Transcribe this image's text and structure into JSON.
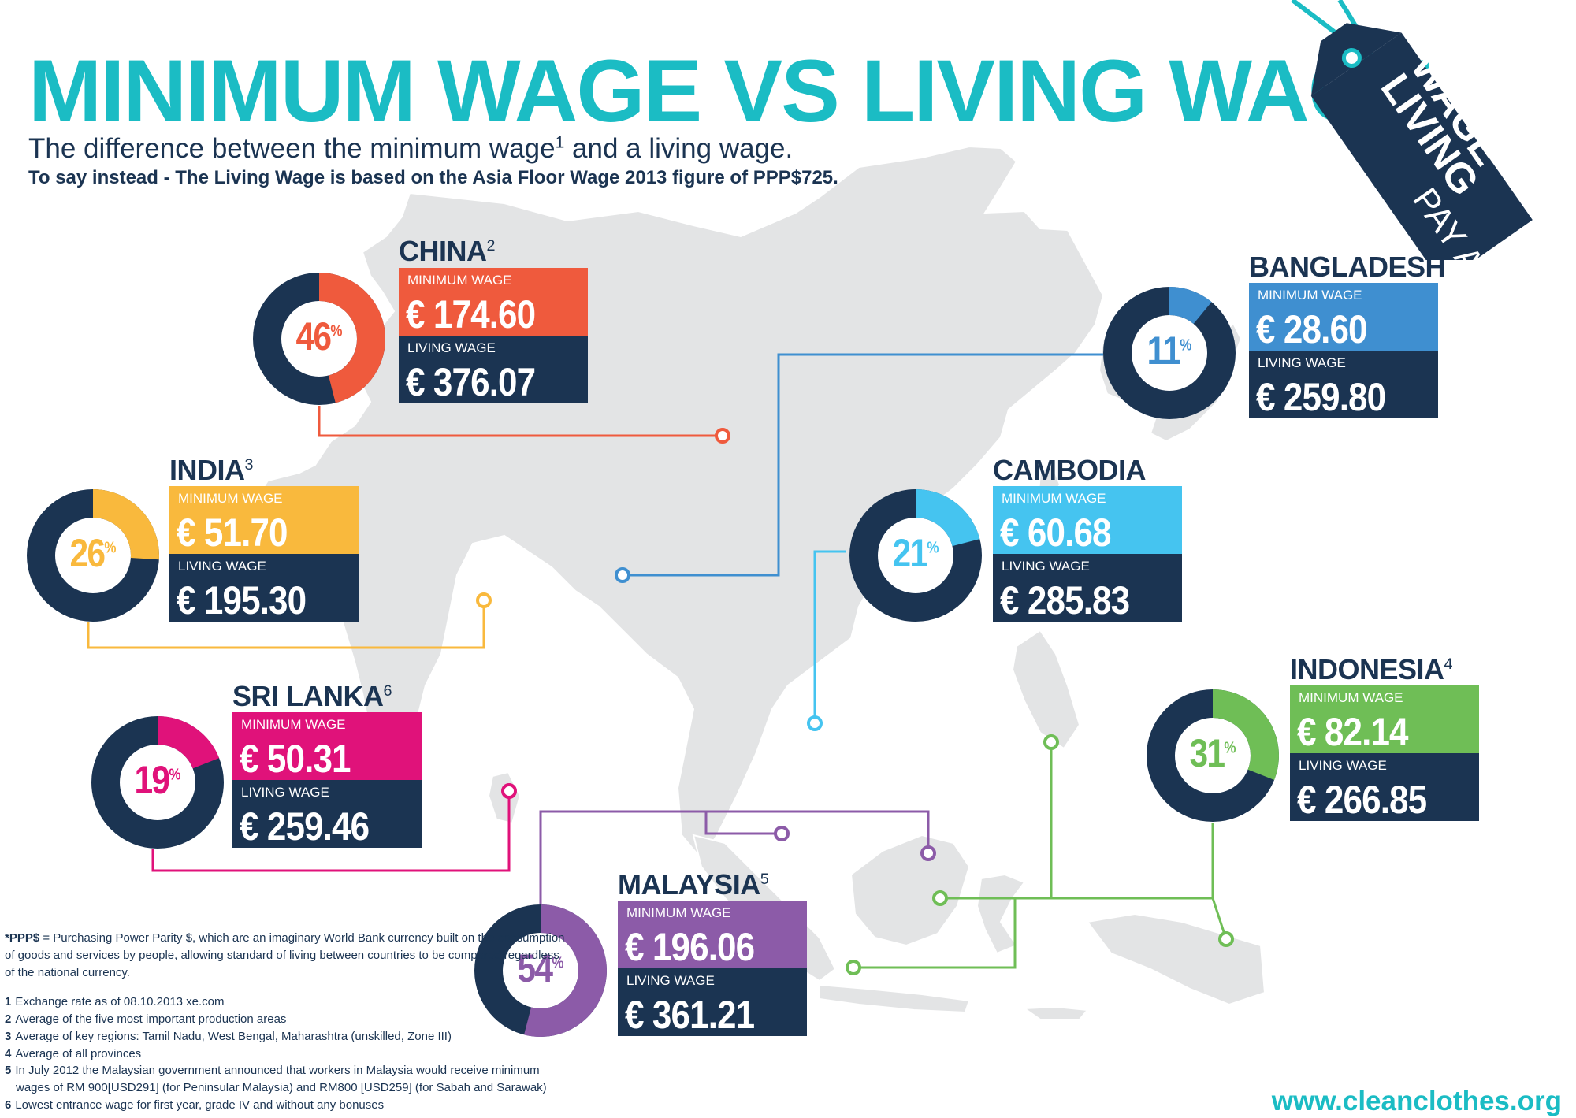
{
  "header": {
    "title": "MINIMUM WAGE VS LIVING WAGE",
    "subtitle_pre": "The difference between the minimum wage",
    "subtitle_sup": "1",
    "subtitle_post": " and a living wage.",
    "subtitle2": "To say instead - The Living Wage is based on the Asia Floor Wage 2013 figure of PPP$725."
  },
  "tag": {
    "line1": "PAY A",
    "line2": "LIVING",
    "line3": "WAGE"
  },
  "labels": {
    "minimum": "MINIMUM WAGE",
    "living": "LIVING WAGE",
    "pct_sign": "%"
  },
  "colors": {
    "navy": "#1b3452",
    "teal": "#1bbcc4",
    "map": "#e3e4e5",
    "china": "#ef5a3d",
    "india": "#f9b93d",
    "srilanka": "#e0127a",
    "malaysia": "#8c5ba8",
    "bangladesh": "#3f8fd0",
    "cambodia": "#45c4f0",
    "indonesia": "#6fbe56"
  },
  "chart_data": {
    "type": "pie",
    "subtype": "donut-set",
    "currency": "€",
    "countries": [
      {
        "key": "china",
        "name": "CHINA",
        "note": "2",
        "pct": 46,
        "minimum_wage": "€ 174.60",
        "living_wage": "€ 376.07",
        "minimum": 174.6,
        "living": 376.07
      },
      {
        "key": "india",
        "name": "INDIA",
        "note": "3",
        "pct": 26,
        "minimum_wage": "€ 51.70",
        "living_wage": "€ 195.30",
        "minimum": 51.7,
        "living": 195.3
      },
      {
        "key": "srilanka",
        "name": "SRI LANKA",
        "note": "6",
        "pct": 19,
        "minimum_wage": "€ 50.31",
        "living_wage": "€ 259.46",
        "minimum": 50.31,
        "living": 259.46
      },
      {
        "key": "malaysia",
        "name": "MALAYSIA",
        "note": "5",
        "pct": 54,
        "minimum_wage": "€ 196.06",
        "living_wage": "€ 361.21",
        "minimum": 196.06,
        "living": 361.21
      },
      {
        "key": "bangladesh",
        "name": "BANGLADESH",
        "note": "",
        "pct": 11,
        "minimum_wage": "€ 28.60",
        "living_wage": "€ 259.80",
        "minimum": 28.6,
        "living": 259.8
      },
      {
        "key": "cambodia",
        "name": "CAMBODIA",
        "note": "",
        "pct": 21,
        "minimum_wage": "€ 60.68",
        "living_wage": "€ 285.83",
        "minimum": 60.68,
        "living": 285.83
      },
      {
        "key": "indonesia",
        "name": "INDONESIA",
        "note": "4",
        "pct": 31,
        "minimum_wage": "€ 82.14",
        "living_wage": "€ 266.85",
        "minimum": 82.14,
        "living": 266.85
      }
    ]
  },
  "footnotes": {
    "ppp_label": "*PPP$",
    "ppp_text": " = Purchasing Power Parity $, which are an imaginary World Bank currency built on the consumption of goods and services by people, allowing standard of living between countries to be compared regardless of the national currency.",
    "items": [
      {
        "num": "1",
        "text": "Exchange rate as of 08.10.2013 xe.com",
        "cont": ""
      },
      {
        "num": "2",
        "text": "Average of the five most important production areas",
        "cont": ""
      },
      {
        "num": "3",
        "text": "Average of key regions: Tamil Nadu, West Bengal, Maharashtra (unskilled, Zone III)",
        "cont": ""
      },
      {
        "num": "4",
        "text": "Average of all provinces",
        "cont": ""
      },
      {
        "num": "5",
        "text": "In July 2012 the Malaysian government announced that workers in Malaysia would receive minimum",
        "cont": "wages of RM 900[USD291] (for Peninsular Malaysia) and RM800 [USD259] (for Sabah and Sarawak)"
      },
      {
        "num": "6",
        "text": "Lowest entrance wage for first year, grade IV and without any bonuses",
        "cont": ""
      }
    ]
  },
  "website": "www.cleanclothes.org"
}
